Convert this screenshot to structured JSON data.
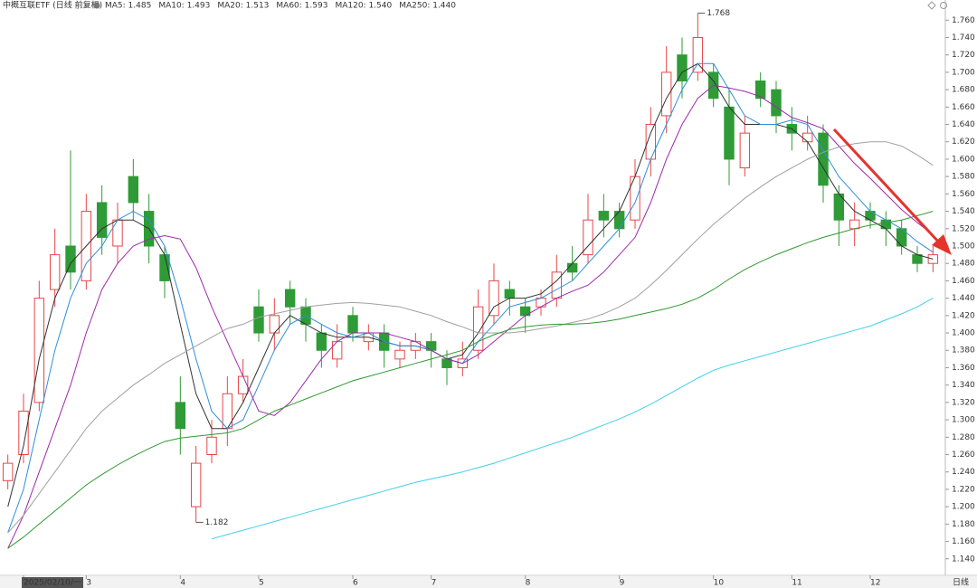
{
  "chart_data": {
    "type": "candlestick",
    "title": "中概互联ETF (日线 前复权)",
    "period_label": "日线",
    "categories": [
      null,
      "2025/02/10/一",
      null,
      null,
      null,
      "3",
      null,
      null,
      null,
      null,
      null,
      "4",
      null,
      null,
      null,
      null,
      "5",
      null,
      null,
      null,
      null,
      null,
      "6",
      null,
      null,
      null,
      null,
      "7",
      null,
      null,
      null,
      null,
      null,
      "8",
      null,
      null,
      null,
      null,
      null,
      "9",
      null,
      null,
      null,
      null,
      null,
      "10",
      null,
      null,
      null,
      null,
      "11",
      null,
      null,
      null,
      null,
      "12",
      null,
      null,
      null,
      null
    ],
    "open": [
      1.23,
      1.26,
      1.32,
      1.45,
      1.5,
      1.46,
      1.55,
      1.5,
      1.58,
      1.54,
      1.49,
      1.32,
      1.2,
      1.26,
      1.29,
      1.33,
      1.43,
      1.4,
      1.45,
      1.43,
      1.4,
      1.37,
      1.42,
      1.39,
      1.4,
      1.37,
      1.38,
      1.39,
      1.37,
      1.36,
      1.38,
      1.42,
      1.45,
      1.43,
      1.43,
      1.44,
      1.48,
      1.49,
      1.54,
      1.54,
      1.53,
      1.6,
      1.65,
      1.72,
      1.7,
      1.7,
      1.66,
      1.59,
      1.69,
      1.68,
      1.64,
      1.62,
      1.63,
      1.56,
      1.52,
      1.54,
      1.53,
      1.52,
      1.49,
      1.48
    ],
    "high": [
      1.26,
      1.33,
      1.46,
      1.52,
      1.61,
      1.56,
      1.57,
      1.55,
      1.6,
      1.56,
      1.5,
      1.35,
      1.27,
      1.3,
      1.35,
      1.37,
      1.45,
      1.44,
      1.46,
      1.44,
      1.41,
      1.41,
      1.43,
      1.41,
      1.41,
      1.39,
      1.4,
      1.4,
      1.38,
      1.39,
      1.45,
      1.48,
      1.46,
      1.44,
      1.45,
      1.49,
      1.5,
      1.56,
      1.56,
      1.55,
      1.6,
      1.66,
      1.73,
      1.74,
      1.768,
      1.71,
      1.68,
      1.65,
      1.7,
      1.69,
      1.66,
      1.65,
      1.64,
      1.57,
      1.55,
      1.55,
      1.54,
      1.53,
      1.5,
      1.5
    ],
    "low": [
      1.22,
      1.25,
      1.31,
      1.43,
      1.45,
      1.45,
      1.49,
      1.48,
      1.53,
      1.48,
      1.44,
      1.26,
      1.182,
      1.25,
      1.27,
      1.32,
      1.39,
      1.38,
      1.41,
      1.39,
      1.36,
      1.36,
      1.39,
      1.38,
      1.36,
      1.36,
      1.37,
      1.36,
      1.34,
      1.35,
      1.37,
      1.41,
      1.42,
      1.4,
      1.42,
      1.43,
      1.46,
      1.48,
      1.51,
      1.51,
      1.52,
      1.58,
      1.63,
      1.67,
      1.69,
      1.66,
      1.57,
      1.58,
      1.66,
      1.63,
      1.61,
      1.61,
      1.55,
      1.5,
      1.5,
      1.52,
      1.5,
      1.49,
      1.47,
      1.47
    ],
    "close": [
      1.25,
      1.31,
      1.44,
      1.49,
      1.47,
      1.54,
      1.51,
      1.53,
      1.55,
      1.5,
      1.46,
      1.29,
      1.25,
      1.28,
      1.33,
      1.35,
      1.4,
      1.42,
      1.43,
      1.41,
      1.38,
      1.39,
      1.4,
      1.4,
      1.38,
      1.38,
      1.39,
      1.38,
      1.36,
      1.37,
      1.43,
      1.46,
      1.44,
      1.42,
      1.44,
      1.47,
      1.47,
      1.53,
      1.53,
      1.52,
      1.58,
      1.64,
      1.7,
      1.69,
      1.74,
      1.67,
      1.6,
      1.63,
      1.67,
      1.65,
      1.63,
      1.63,
      1.57,
      1.53,
      1.53,
      1.53,
      1.52,
      1.5,
      1.48,
      1.49
    ],
    "up_color": "#e8464a",
    "down_color": "#2e9b36",
    "series": [
      {
        "name": "MA5",
        "legend": "MA5: 1.485",
        "color": "#333333",
        "values": [
          1.2,
          1.27,
          1.37,
          1.44,
          1.48,
          1.5,
          1.52,
          1.53,
          1.53,
          1.52,
          1.49,
          1.41,
          1.33,
          1.29,
          1.29,
          1.32,
          1.36,
          1.4,
          1.42,
          1.41,
          1.4,
          1.395,
          1.395,
          1.395,
          1.39,
          1.385,
          1.385,
          1.38,
          1.37,
          1.375,
          1.4,
          1.43,
          1.44,
          1.44,
          1.445,
          1.46,
          1.48,
          1.5,
          1.52,
          1.54,
          1.58,
          1.63,
          1.67,
          1.7,
          1.71,
          1.69,
          1.66,
          1.64,
          1.64,
          1.64,
          1.635,
          1.62,
          1.59,
          1.56,
          1.54,
          1.53,
          1.52,
          1.5,
          1.49,
          1.485
        ]
      },
      {
        "name": "MA10",
        "legend": "MA10: 1.493",
        "color": "#2f8fd8",
        "values": [
          1.17,
          1.22,
          1.3,
          1.38,
          1.44,
          1.48,
          1.5,
          1.53,
          1.54,
          1.53,
          1.5,
          1.44,
          1.37,
          1.31,
          1.29,
          1.3,
          1.34,
          1.38,
          1.41,
          1.42,
          1.41,
          1.4,
          1.395,
          1.4,
          1.39,
          1.385,
          1.385,
          1.38,
          1.37,
          1.365,
          1.39,
          1.41,
          1.43,
          1.435,
          1.44,
          1.45,
          1.46,
          1.48,
          1.5,
          1.52,
          1.55,
          1.6,
          1.64,
          1.68,
          1.71,
          1.71,
          1.68,
          1.65,
          1.64,
          1.64,
          1.645,
          1.64,
          1.61,
          1.58,
          1.56,
          1.54,
          1.53,
          1.52,
          1.505,
          1.493
        ]
      },
      {
        "name": "MA20",
        "legend": "MA20: 1.513",
        "color": "#9c2aa8",
        "values": [
          1.152,
          1.19,
          1.24,
          1.29,
          1.34,
          1.4,
          1.45,
          1.48,
          1.5,
          1.508,
          1.512,
          1.508,
          1.475,
          1.43,
          1.39,
          1.35,
          1.31,
          1.305,
          1.32,
          1.345,
          1.37,
          1.39,
          1.4,
          1.4,
          1.4,
          1.395,
          1.39,
          1.38,
          1.37,
          1.365,
          1.375,
          1.39,
          1.405,
          1.42,
          1.43,
          1.44,
          1.448,
          1.455,
          1.47,
          1.49,
          1.51,
          1.55,
          1.6,
          1.64,
          1.67,
          1.685,
          1.682,
          1.678,
          1.672,
          1.66,
          1.648,
          1.642,
          1.635,
          1.615,
          1.595,
          1.578,
          1.56,
          1.542,
          1.527,
          1.513
        ]
      },
      {
        "name": "MA60",
        "legend": "MA60: 1.593",
        "color": "#a0a0a0",
        "values": [
          1.17,
          1.19,
          1.215,
          1.24,
          1.265,
          1.29,
          1.31,
          1.325,
          1.34,
          1.352,
          1.365,
          1.375,
          1.385,
          1.395,
          1.405,
          1.41,
          1.418,
          1.422,
          1.426,
          1.43,
          1.432,
          1.434,
          1.435,
          1.434,
          1.432,
          1.43,
          1.425,
          1.42,
          1.413,
          1.407,
          1.4,
          1.4,
          1.4,
          1.402,
          1.405,
          1.408,
          1.412,
          1.416,
          1.422,
          1.43,
          1.44,
          1.455,
          1.472,
          1.49,
          1.508,
          1.525,
          1.54,
          1.555,
          1.568,
          1.58,
          1.59,
          1.6,
          1.608,
          1.614,
          1.618,
          1.62,
          1.62,
          1.615,
          1.605,
          1.593
        ]
      },
      {
        "name": "MA120",
        "legend": "MA120: 1.540",
        "color": "#2f9a2f",
        "values": [
          1.152,
          1.165,
          1.18,
          1.195,
          1.21,
          1.225,
          1.237,
          1.248,
          1.258,
          1.267,
          1.275,
          1.279,
          1.281,
          1.283,
          1.285,
          1.29,
          1.3,
          1.31,
          1.317,
          1.324,
          1.331,
          1.338,
          1.345,
          1.35,
          1.355,
          1.36,
          1.365,
          1.37,
          1.375,
          1.38,
          1.39,
          1.398,
          1.404,
          1.407,
          1.409,
          1.41,
          1.41,
          1.411,
          1.413,
          1.416,
          1.42,
          1.424,
          1.428,
          1.433,
          1.44,
          1.45,
          1.462,
          1.473,
          1.482,
          1.49,
          1.497,
          1.504,
          1.51,
          1.515,
          1.52,
          1.524,
          1.527,
          1.53,
          1.535,
          1.54
        ]
      },
      {
        "name": "MA250",
        "legend": "MA250: 1.440",
        "color": "#3fd0e6",
        "values": [
          null,
          null,
          null,
          null,
          null,
          null,
          null,
          null,
          null,
          null,
          null,
          null,
          null,
          1.163,
          1.168,
          1.173,
          1.178,
          1.183,
          1.188,
          1.193,
          1.198,
          1.203,
          1.208,
          1.213,
          1.218,
          1.223,
          1.228,
          1.232,
          1.236,
          1.24,
          1.245,
          1.25,
          1.256,
          1.262,
          1.268,
          1.274,
          1.28,
          1.287,
          1.294,
          1.301,
          1.309,
          1.318,
          1.328,
          1.338,
          1.348,
          1.357,
          1.363,
          1.368,
          1.373,
          1.378,
          1.383,
          1.388,
          1.393,
          1.398,
          1.403,
          1.408,
          1.415,
          1.422,
          1.43,
          1.44
        ]
      }
    ],
    "ylim": [
      1.121,
      1.778
    ],
    "yticks": [
      {
        "value": 1.14,
        "label": "1.140"
      },
      {
        "value": 1.16,
        "label": "1.160"
      },
      {
        "value": 1.18,
        "label": "1.180"
      },
      {
        "value": 1.2,
        "label": "1.200"
      },
      {
        "value": 1.22,
        "label": "1.220"
      },
      {
        "value": 1.24,
        "label": "1.240"
      },
      {
        "value": 1.26,
        "label": "1.260"
      },
      {
        "value": 1.28,
        "label": "1.280"
      },
      {
        "value": 1.3,
        "label": "1.300"
      },
      {
        "value": 1.32,
        "label": "1.320"
      },
      {
        "value": 1.34,
        "label": "1.340"
      },
      {
        "value": 1.36,
        "label": "1.360"
      },
      {
        "value": 1.38,
        "label": "1.380"
      },
      {
        "value": 1.4,
        "label": "1.400"
      },
      {
        "value": 1.42,
        "label": "1.420"
      },
      {
        "value": 1.44,
        "label": "1.440"
      },
      {
        "value": 1.46,
        "label": "1.460"
      },
      {
        "value": 1.48,
        "label": "1.480"
      },
      {
        "value": 1.5,
        "label": "1.500"
      },
      {
        "value": 1.52,
        "label": "1.520"
      },
      {
        "value": 1.54,
        "label": "1.540"
      },
      {
        "value": 1.56,
        "label": "1.560"
      },
      {
        "value": 1.58,
        "label": "1.580"
      },
      {
        "value": 1.6,
        "label": "1.600"
      },
      {
        "value": 1.62,
        "label": "1.620"
      },
      {
        "value": 1.64,
        "label": "1.640"
      },
      {
        "value": 1.66,
        "label": "1.660"
      },
      {
        "value": 1.68,
        "label": "1.680"
      },
      {
        "value": 1.7,
        "label": "1.700"
      },
      {
        "value": 1.72,
        "label": "1.720"
      },
      {
        "value": 1.74,
        "label": "1.740"
      },
      {
        "value": 1.76,
        "label": "1.760"
      }
    ],
    "grid": false
  }
}
